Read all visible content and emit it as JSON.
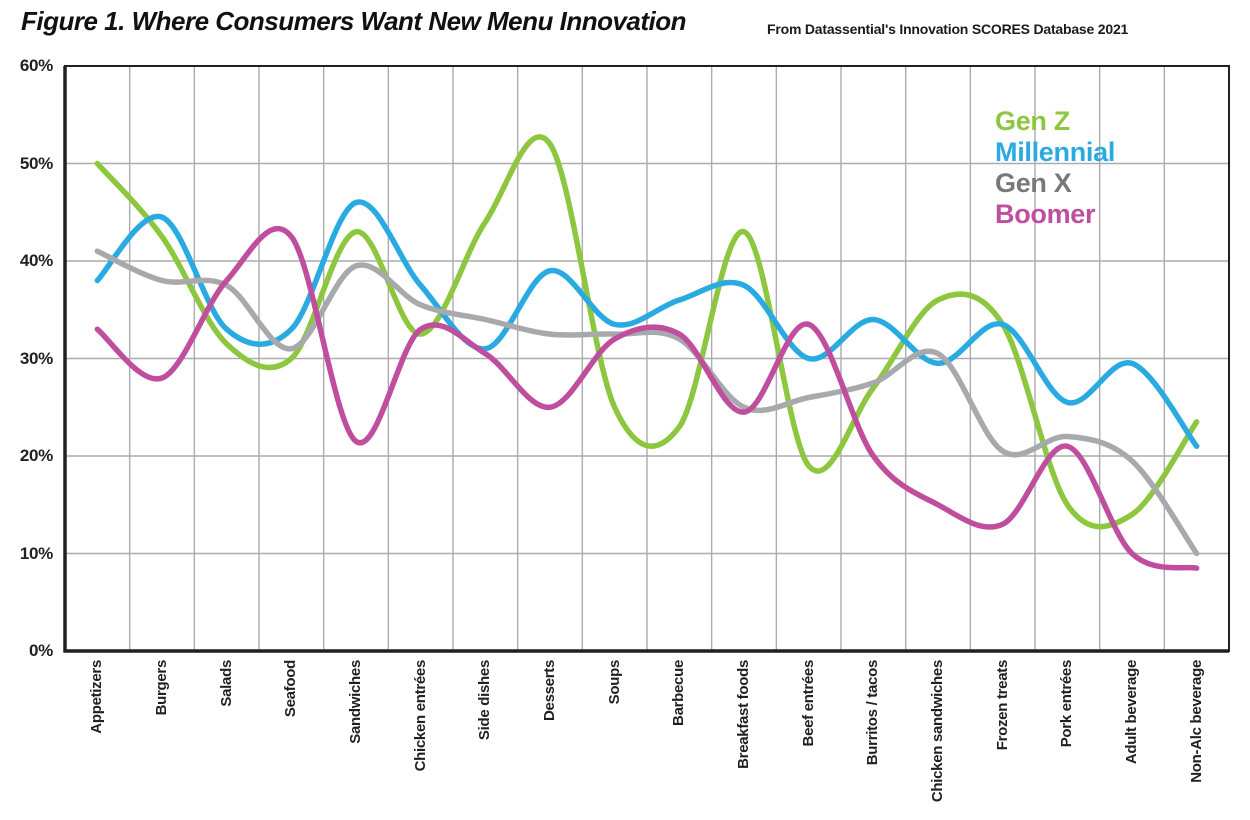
{
  "page": {
    "title": "Figure 1. Where Consumers Want New Menu Innovation",
    "source_note": "From Datassential's Innovation SCORES Database 2021"
  },
  "chart_data": {
    "type": "line",
    "title": "Figure 1. Where Consumers Want New Menu Innovation",
    "subtitle": "From Datassential's Innovation SCORES Database 2021",
    "curve": "smooth",
    "grid": true,
    "legend_position": "top-right-inside",
    "xlabel": "",
    "ylabel": "",
    "ylim": [
      0,
      60
    ],
    "yticks": [
      "0%",
      "10%",
      "20%",
      "30%",
      "40%",
      "50%",
      "60%"
    ],
    "categories": [
      "Appetizers",
      "Burgers",
      "Salads",
      "Seafood",
      "Sandwiches",
      "Chicken entrées",
      "Side dishes",
      "Desserts",
      "Soups",
      "Barbecue",
      "Breakfast foods",
      "Beef entrées",
      "Burritos / tacos",
      "Chicken sandwiches",
      "Frozen treats",
      "Pork entrées",
      "Adult beverage",
      "Non-Alc beverage"
    ],
    "series": [
      {
        "name": "Gen Z",
        "color": "#8DC63F",
        "legend_color": "#8DC63F",
        "values": [
          50,
          42.5,
          31.5,
          30,
          43,
          32.5,
          44,
          52,
          25,
          23,
          43,
          19,
          27,
          36,
          33.5,
          15,
          14,
          23.5
        ]
      },
      {
        "name": "Millennial",
        "color": "#29ABE2",
        "legend_color": "#29ABE2",
        "values": [
          38,
          44.5,
          33,
          33,
          46,
          37.5,
          31,
          39,
          33.5,
          36,
          37.5,
          30,
          34,
          29.5,
          33.5,
          25.5,
          29.5,
          21
        ]
      },
      {
        "name": "Gen X",
        "color": "#A7A9AC",
        "legend_color": "#77787B",
        "values": [
          41,
          38,
          37.5,
          31,
          39.5,
          35.5,
          34,
          32.5,
          32.5,
          32,
          25,
          26,
          27.5,
          30.5,
          20.5,
          22,
          19.5,
          10
        ]
      },
      {
        "name": "Boomer",
        "color": "#BF4F9E",
        "legend_color": "#BF4F9E",
        "values": [
          33,
          28,
          38,
          42.5,
          21.5,
          33,
          30.5,
          25,
          32,
          32.5,
          24.5,
          33.5,
          20,
          15,
          13,
          21,
          10,
          8.5
        ]
      }
    ]
  },
  "colors": {
    "background": "#FFFFFF",
    "grid": "#aaacae",
    "axis": "#231F20",
    "text": "#231F20"
  }
}
